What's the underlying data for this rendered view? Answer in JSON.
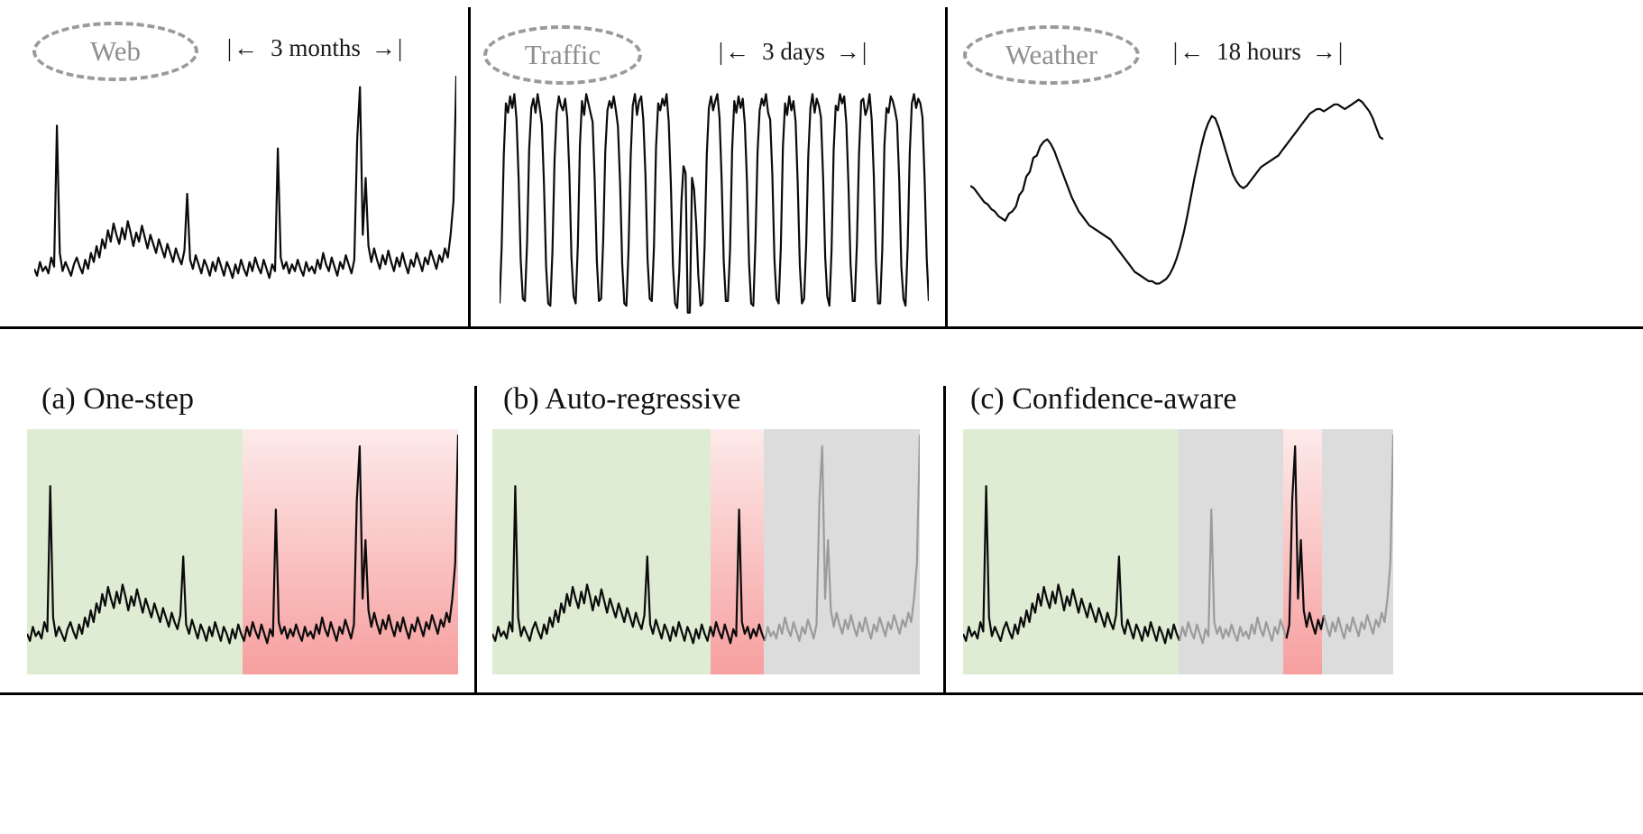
{
  "glyphs": {
    "arrow_left": "|←",
    "arrow_right": "→|"
  },
  "colors": {
    "line_black": "#0b0b0b",
    "line_gray": "#9b9b9b",
    "ellipse_border": "#9a9a9a",
    "ellipse_text": "#8f8f8f",
    "green": "#ddecd3",
    "gray": "#dcdcdc",
    "red_top": "#fdeaea",
    "red_bottom": "#f79f9f"
  },
  "chart_data": [
    {
      "id": "web",
      "type": "line",
      "label": "Web",
      "span": "3 months",
      "ylim": [
        0,
        100
      ],
      "grid": false,
      "legend": "none",
      "values": [
        15,
        12,
        18,
        14,
        16,
        13,
        20,
        16,
        78,
        22,
        14,
        18,
        15,
        12,
        17,
        20,
        16,
        13,
        19,
        15,
        22,
        18,
        25,
        20,
        28,
        24,
        32,
        27,
        35,
        30,
        26,
        33,
        28,
        36,
        31,
        25,
        31,
        27,
        34,
        29,
        24,
        30,
        26,
        22,
        28,
        24,
        20,
        26,
        22,
        18,
        24,
        20,
        17,
        23,
        48,
        19,
        15,
        21,
        17,
        13,
        19,
        16,
        12,
        18,
        14,
        20,
        16,
        12,
        18,
        15,
        11,
        17,
        13,
        19,
        15,
        12,
        18,
        14,
        20,
        16,
        13,
        19,
        15,
        11,
        17,
        14,
        68,
        20,
        15,
        18,
        13,
        17,
        14,
        19,
        15,
        12,
        18,
        14,
        16,
        13,
        19,
        15,
        22,
        17,
        14,
        20,
        16,
        12,
        18,
        15,
        21,
        17,
        13,
        19,
        72,
        95,
        30,
        55,
        25,
        18,
        24,
        19,
        15,
        21,
        17,
        23,
        18,
        14,
        20,
        16,
        22,
        17,
        13,
        19,
        16,
        22,
        18,
        14,
        20,
        17,
        23,
        19,
        15,
        21,
        18,
        24,
        20,
        30,
        45,
        100
      ]
    },
    {
      "id": "traffic",
      "type": "line",
      "label": "Traffic",
      "span": "3 days",
      "ylim": [
        0,
        100
      ],
      "grid": false,
      "legend": "none",
      "values": [
        6,
        30,
        70,
        92,
        88,
        95,
        90,
        96,
        85,
        60,
        25,
        8,
        7,
        32,
        72,
        90,
        94,
        88,
        96,
        90,
        83,
        58,
        22,
        6,
        5,
        28,
        68,
        88,
        95,
        91,
        89,
        94,
        86,
        62,
        26,
        9,
        6,
        31,
        74,
        93,
        87,
        96,
        92,
        88,
        84,
        59,
        24,
        7,
        8,
        33,
        71,
        89,
        93,
        90,
        95,
        89,
        82,
        57,
        23,
        6,
        5,
        29,
        69,
        91,
        96,
        87,
        93,
        95,
        85,
        61,
        25,
        8,
        7,
        30,
        73,
        92,
        89,
        94,
        91,
        96,
        84,
        58,
        22,
        6,
        4,
        20,
        50,
        65,
        62,
        2,
        2,
        60,
        55,
        40,
        18,
        5,
        6,
        31,
        70,
        90,
        95,
        89,
        93,
        96,
        86,
        60,
        24,
        7,
        7,
        29,
        72,
        93,
        88,
        95,
        90,
        94,
        83,
        59,
        23,
        6,
        5,
        32,
        71,
        89,
        94,
        91,
        96,
        88,
        85,
        61,
        25,
        8,
        6,
        30,
        73,
        92,
        87,
        95,
        89,
        93,
        84,
        58,
        22,
        6,
        8,
        31,
        69,
        90,
        96,
        88,
        94,
        91,
        86,
        60,
        26,
        9,
        5,
        28,
        72,
        91,
        89,
        96,
        92,
        95,
        83,
        57,
        23,
        7,
        7,
        32,
        70,
        93,
        94,
        87,
        90,
        96,
        85,
        61,
        24,
        6,
        6,
        29,
        74,
        90,
        88,
        95,
        93,
        89,
        84,
        59,
        22,
        8,
        5,
        31,
        71,
        92,
        96,
        90,
        94,
        92,
        86,
        60,
        25,
        7
      ]
    },
    {
      "id": "weather",
      "type": "line",
      "label": "Weather",
      "span": "18 hours",
      "ylim": [
        0,
        100
      ],
      "grid": false,
      "legend": "none",
      "values": [
        55,
        54,
        52,
        50,
        48,
        47,
        45,
        44,
        42,
        41,
        40,
        43,
        44,
        46,
        51,
        53,
        59,
        61,
        67,
        68,
        72,
        74,
        75,
        73,
        70,
        66,
        62,
        58,
        54,
        50,
        47,
        44,
        42,
        40,
        38,
        37,
        36,
        35,
        34,
        33,
        32,
        30,
        28,
        26,
        24,
        22,
        20,
        18,
        17,
        16,
        15,
        14,
        14,
        13,
        13,
        14,
        15,
        17,
        20,
        24,
        29,
        35,
        42,
        50,
        58,
        65,
        72,
        78,
        82,
        85,
        84,
        80,
        75,
        70,
        65,
        60,
        57,
        55,
        54,
        55,
        57,
        59,
        61,
        63,
        64,
        65,
        66,
        67,
        68,
        70,
        72,
        74,
        76,
        78,
        80,
        82,
        84,
        86,
        87,
        88,
        88,
        87,
        88,
        89,
        90,
        90,
        89,
        88,
        89,
        90,
        91,
        92,
        91,
        89,
        87,
        84,
        80,
        76,
        75
      ]
    },
    {
      "id": "one_step",
      "type": "line",
      "title": "(a) One-step",
      "values_ref": "web",
      "ylim": [
        0,
        100
      ],
      "grid": false,
      "legend": "none",
      "regions": [
        {
          "from": 0,
          "to": 0.5,
          "fill": "green"
        },
        {
          "from": 0.5,
          "to": 1.0,
          "fill": "red_gradient"
        }
      ],
      "segments": [
        {
          "from": 0,
          "to": 1,
          "color": "black"
        }
      ]
    },
    {
      "id": "auto_regressive",
      "type": "line",
      "title": "(b) Auto-regressive",
      "values_ref": "web",
      "ylim": [
        0,
        100
      ],
      "grid": false,
      "legend": "none",
      "regions": [
        {
          "from": 0,
          "to": 0.51,
          "fill": "green"
        },
        {
          "from": 0.51,
          "to": 0.635,
          "fill": "red_gradient"
        },
        {
          "from": 0.635,
          "to": 1.0,
          "fill": "gray"
        }
      ],
      "segments": [
        {
          "from": 0,
          "to": 0.64,
          "color": "black"
        },
        {
          "from": 0.64,
          "to": 1,
          "color": "gray"
        }
      ]
    },
    {
      "id": "confidence_aware",
      "type": "line",
      "title": "(c) Confidence-aware",
      "values_ref": "web",
      "ylim": [
        0,
        100
      ],
      "grid": false,
      "legend": "none",
      "regions": [
        {
          "from": 0,
          "to": 0.5,
          "fill": "green"
        },
        {
          "from": 0.5,
          "to": 0.745,
          "fill": "gray"
        },
        {
          "from": 0.745,
          "to": 0.835,
          "fill": "red_gradient"
        },
        {
          "from": 0.835,
          "to": 1.0,
          "fill": "gray"
        }
      ],
      "segments": [
        {
          "from": 0,
          "to": 0.505,
          "color": "black"
        },
        {
          "from": 0.505,
          "to": 0.75,
          "color": "gray"
        },
        {
          "from": 0.75,
          "to": 0.84,
          "color": "black"
        },
        {
          "from": 0.84,
          "to": 1,
          "color": "gray"
        }
      ]
    }
  ]
}
